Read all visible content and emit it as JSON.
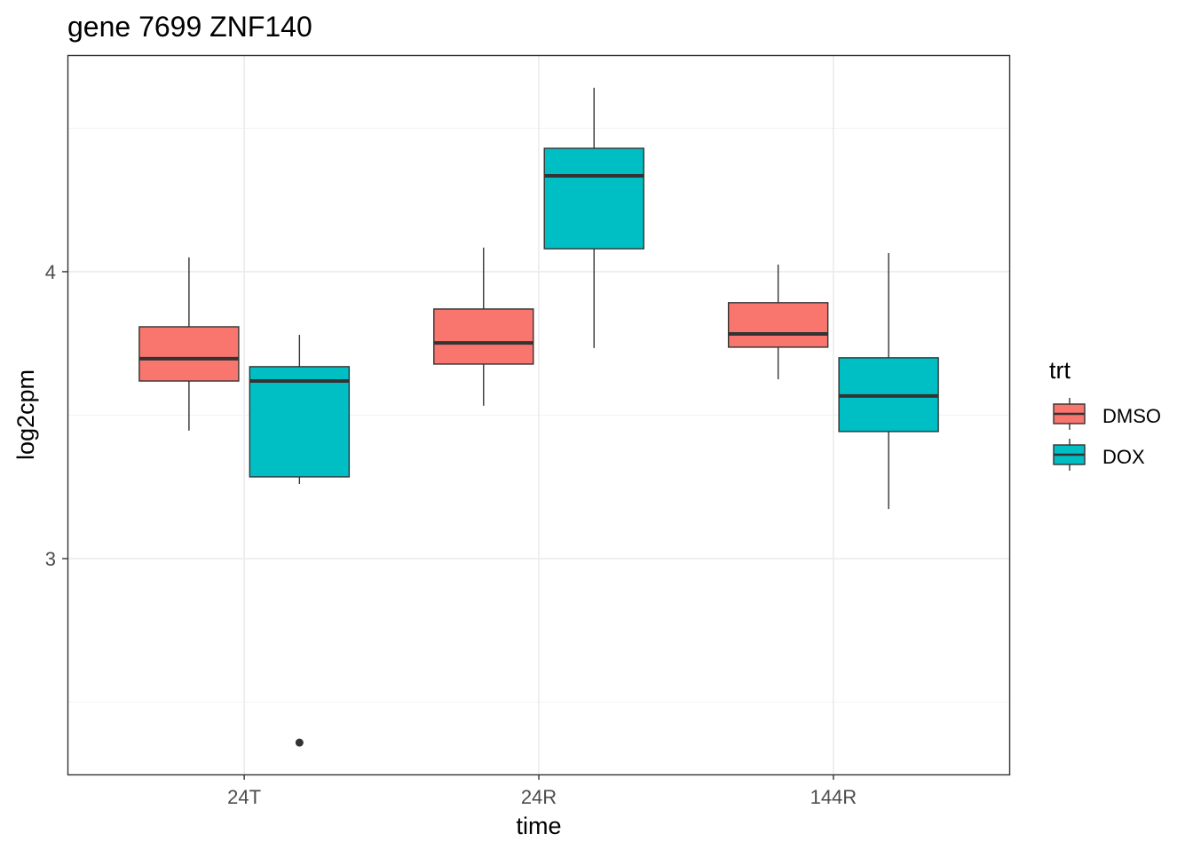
{
  "chart_data": {
    "type": "boxplot",
    "title": "gene 7699 ZNF140",
    "xlabel": "time",
    "ylabel": "log2cpm",
    "categories": [
      "24T",
      "24R",
      "144R"
    ],
    "ylim": [
      2.248,
      4.755
    ],
    "yticks": [
      3,
      4
    ],
    "ytick_labels": [
      "3",
      "4"
    ],
    "minor_yticks": [
      2.5,
      3.5,
      4.5
    ],
    "grid": true,
    "legend": {
      "title": "trt",
      "placement": "right"
    },
    "series": [
      {
        "name": "DMSO",
        "color": "#F8766D",
        "boxes": [
          {
            "category": "24T",
            "whisker_low": 3.446,
            "q1": 3.619,
            "median": 3.697,
            "q3": 3.808,
            "whisker_high": 4.05,
            "outliers": []
          },
          {
            "category": "24R",
            "whisker_low": 3.533,
            "q1": 3.678,
            "median": 3.752,
            "q3": 3.87,
            "whisker_high": 4.084,
            "outliers": []
          },
          {
            "category": "144R",
            "whisker_low": 3.625,
            "q1": 3.737,
            "median": 3.783,
            "q3": 3.892,
            "whisker_high": 4.025,
            "outliers": []
          }
        ]
      },
      {
        "name": "DOX",
        "color": "#00BFC4",
        "boxes": [
          {
            "category": "24T",
            "whisker_low": 3.26,
            "q1": 3.285,
            "median": 3.619,
            "q3": 3.669,
            "whisker_high": 3.78,
            "outliers": [
              2.359
            ]
          },
          {
            "category": "24R",
            "whisker_low": 3.734,
            "q1": 4.08,
            "median": 4.334,
            "q3": 4.43,
            "whisker_high": 4.641,
            "outliers": []
          },
          {
            "category": "144R",
            "whisker_low": 3.173,
            "q1": 3.443,
            "median": 3.567,
            "q3": 3.7,
            "whisker_high": 4.065,
            "outliers": []
          }
        ]
      }
    ]
  }
}
